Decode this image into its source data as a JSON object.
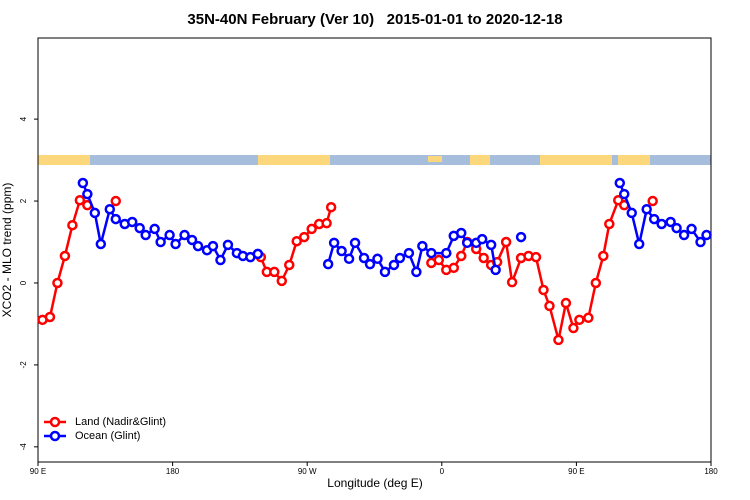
{
  "chart_data": {
    "type": "line",
    "title": "35N-40N February (Ver 10)   2015-01-01 to 2020-12-18",
    "x_label": "Longitude (deg E)",
    "y_label": "XCO2 - MLO trend (ppm)",
    "xlim": [
      90,
      540
    ],
    "xticks": [
      {
        "value": 90,
        "label": "90 E"
      },
      180,
      {
        "value": 270,
        "label": "90 W"
      },
      {
        "value": 360,
        "label": "0"
      },
      {
        "value": 450,
        "label": "90 E"
      },
      {
        "value": 540,
        "label": "180"
      }
    ],
    "ylim": [
      -4.37,
      5.98
    ],
    "yticks": [
      -4,
      -2,
      0,
      2,
      4
    ],
    "legend": "bottomleft",
    "series": [
      {
        "name": "Land (Nadir&Glint)",
        "color": "#ff0000",
        "x": [
          93,
          98,
          103,
          108,
          113,
          118,
          123,
          null,
          142,
          null,
          239,
          243,
          248,
          253,
          258,
          263,
          268,
          273,
          278,
          283,
          286,
          null,
          353,
          358,
          363,
          368,
          373,
          377,
          383,
          388,
          393,
          397,
          403,
          407,
          413,
          418,
          423,
          428,
          432,
          438,
          443,
          448,
          452,
          458,
          463,
          468,
          472,
          478,
          482,
          null,
          501
        ],
        "values": [
          -0.9,
          -0.83,
          0.0,
          0.66,
          1.41,
          2.02,
          1.9,
          null,
          2.0,
          null,
          0.63,
          0.27,
          0.27,
          0.05,
          0.44,
          1.02,
          1.12,
          1.32,
          1.44,
          1.46,
          1.85,
          null,
          0.49,
          0.56,
          0.32,
          0.37,
          0.66,
          1.0,
          0.83,
          0.61,
          0.44,
          0.51,
          1.0,
          0.02,
          0.61,
          0.66,
          0.63,
          -0.17,
          -0.56,
          -1.39,
          -0.49,
          -1.1,
          -0.9,
          -0.85,
          0.0,
          0.66,
          1.44,
          2.02,
          1.9,
          null,
          2.0
        ]
      },
      {
        "name": "Ocean (Glint)",
        "color": "#0000ff",
        "x": [
          120,
          123,
          128,
          132,
          138,
          142,
          148,
          153,
          158,
          162,
          168,
          172,
          178,
          182,
          188,
          193,
          197,
          203,
          207,
          212,
          217,
          223,
          227,
          232,
          237,
          null,
          284,
          288,
          293,
          298,
          302,
          308,
          312,
          317,
          322,
          328,
          332,
          338,
          343,
          347,
          353,
          363,
          368,
          373,
          377,
          383,
          387,
          393,
          396,
          null,
          413,
          null,
          479,
          482,
          487,
          492,
          497,
          502,
          507,
          513,
          517,
          522,
          527,
          533,
          537
        ],
        "values": [
          2.44,
          2.17,
          1.71,
          0.95,
          1.8,
          1.56,
          1.44,
          1.49,
          1.34,
          1.17,
          1.32,
          1.0,
          1.17,
          0.95,
          1.17,
          1.05,
          0.9,
          0.8,
          0.9,
          0.56,
          0.93,
          0.73,
          0.66,
          0.63,
          0.71,
          null,
          0.46,
          0.98,
          0.78,
          0.59,
          0.98,
          0.61,
          0.46,
          0.59,
          0.27,
          0.44,
          0.61,
          0.73,
          0.27,
          0.9,
          0.73,
          0.73,
          1.15,
          1.22,
          0.98,
          0.98,
          1.07,
          0.93,
          0.32,
          null,
          1.12,
          null,
          2.44,
          2.17,
          1.71,
          0.95,
          1.8,
          1.56,
          1.44,
          1.49,
          1.34,
          1.17,
          1.32,
          1.0,
          1.17
        ]
      }
    ]
  }
}
